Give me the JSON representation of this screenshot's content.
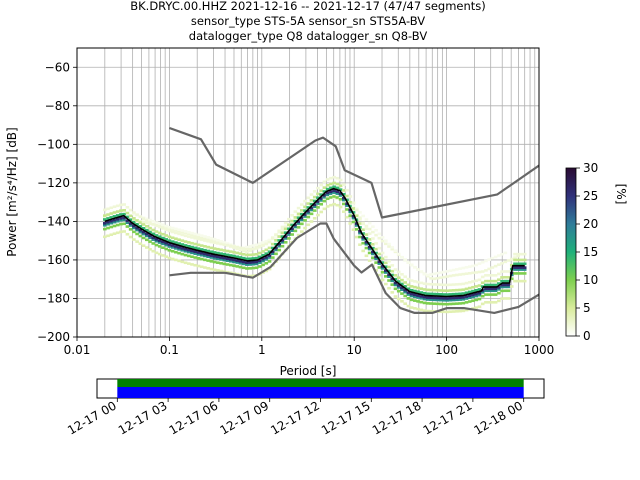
{
  "chart_data": [
    {
      "type": "heatmap",
      "title_lines": [
        "BK.DRYC.00.HHZ   2021-12-16 -- 2021-12-17  (47/47 segments)",
        "sensor_type STS-5A sensor_sn STS5A-BV",
        "datalogger_type Q8 datalogger_sn Q8-BV"
      ],
      "xlabel": "Period [s]",
      "ylabel": "Power [m²/s⁴/Hz] [dB]",
      "x_scale": "log",
      "xlim": [
        0.01,
        1000
      ],
      "ylim": [
        -200,
        -50
      ],
      "x_ticks": [
        {
          "v": 0.01,
          "label": "0.01"
        },
        {
          "v": 0.1,
          "label": "0.1"
        },
        {
          "v": 1,
          "label": "1"
        },
        {
          "v": 10,
          "label": "10"
        },
        {
          "v": 100,
          "label": "100"
        },
        {
          "v": 1000,
          "label": "1000"
        }
      ],
      "y_ticks": [
        {
          "v": -60,
          "label": "−60"
        },
        {
          "v": -80,
          "label": "−80"
        },
        {
          "v": -100,
          "label": "−100"
        },
        {
          "v": -120,
          "label": "−120"
        },
        {
          "v": -140,
          "label": "−140"
        },
        {
          "v": -160,
          "label": "−160"
        },
        {
          "v": -180,
          "label": "−180"
        },
        {
          "v": -200,
          "label": "−200"
        }
      ],
      "grid": true,
      "colorbar": {
        "label": "[%]",
        "range": [
          0,
          30
        ],
        "ticks": [
          {
            "v": 0,
            "label": "0"
          },
          {
            "v": 5,
            "label": "5"
          },
          {
            "v": 10,
            "label": "10"
          },
          {
            "v": 15,
            "label": "15"
          },
          {
            "v": 20,
            "label": "20"
          },
          {
            "v": 25,
            "label": "25"
          },
          {
            "v": 30,
            "label": "30"
          }
        ],
        "colors": [
          "#ffffff",
          "#d9ec9c",
          "#7ecf4f",
          "#1fb07a",
          "#2f7c9a",
          "#30317a",
          "#2a0b33"
        ]
      },
      "noise_models": [
        {
          "name": "NHNM",
          "points": [
            [
              0.1,
              -91.5
            ],
            [
              0.22,
              -97.4
            ],
            [
              0.32,
              -110.5
            ],
            [
              0.8,
              -120
            ],
            [
              3.8,
              -98
            ],
            [
              4.6,
              -96.5
            ],
            [
              6.3,
              -101
            ],
            [
              7.9,
              -113.5
            ],
            [
              15.4,
              -120
            ],
            [
              20,
              -138
            ],
            [
              354.8,
              -126
            ],
            [
              1000,
              -111
            ]
          ]
        },
        {
          "name": "NLNM",
          "points": [
            [
              0.1,
              -168
            ],
            [
              0.17,
              -166.7
            ],
            [
              0.4,
              -166.7
            ],
            [
              0.8,
              -169.2
            ],
            [
              1.24,
              -163.7
            ],
            [
              2.4,
              -148.6
            ],
            [
              4.3,
              -141.1
            ],
            [
              5,
              -141.1
            ],
            [
              6,
              -149
            ],
            [
              10,
              -163
            ],
            [
              12,
              -166.5
            ],
            [
              15.6,
              -162.4
            ],
            [
              21.9,
              -177.2
            ],
            [
              31.6,
              -185
            ],
            [
              45,
              -187.5
            ],
            [
              70,
              -187.5
            ],
            [
              101,
              -185
            ],
            [
              154,
              -185
            ],
            [
              328,
              -187.5
            ],
            [
              600,
              -184.4
            ],
            [
              1000,
              -178
            ]
          ]
        }
      ],
      "mode_curve": [
        [
          0.02,
          -140
        ],
        [
          0.025,
          -138.5
        ],
        [
          0.032,
          -137
        ],
        [
          0.04,
          -141
        ],
        [
          0.05,
          -144
        ],
        [
          0.07,
          -148
        ],
        [
          0.1,
          -151
        ],
        [
          0.15,
          -153.5
        ],
        [
          0.2,
          -155
        ],
        [
          0.3,
          -157
        ],
        [
          0.5,
          -159
        ],
        [
          0.7,
          -160.5
        ],
        [
          0.9,
          -160
        ],
        [
          1.2,
          -157
        ],
        [
          1.6,
          -150
        ],
        [
          2.2,
          -142
        ],
        [
          3,
          -135
        ],
        [
          4,
          -129
        ],
        [
          5,
          -124.5
        ],
        [
          6,
          -123
        ],
        [
          7,
          -124
        ],
        [
          8,
          -128
        ],
        [
          10,
          -137
        ],
        [
          12,
          -146
        ],
        [
          15,
          -153
        ],
        [
          20,
          -162
        ],
        [
          28,
          -171
        ],
        [
          40,
          -176.5
        ],
        [
          60,
          -178.5
        ],
        [
          100,
          -179
        ],
        [
          150,
          -178.5
        ],
        [
          200,
          -177
        ],
        [
          240,
          -176
        ],
        [
          250,
          -174
        ],
        [
          350,
          -174
        ],
        [
          400,
          -172
        ],
        [
          480,
          -172
        ],
        [
          520,
          -163
        ],
        [
          700,
          -163
        ]
      ],
      "density_spread": {
        "stripes": [
          [
            -8,
            4
          ],
          [
            -4,
            10
          ],
          [
            -2,
            18
          ],
          [
            -1,
            26
          ],
          [
            1,
            14
          ],
          [
            3,
            6
          ],
          [
            6,
            2
          ]
        ]
      },
      "faint_upper_curves": [
        {
          "points": [
            [
              0.02,
              -138
            ],
            [
              0.05,
              -140
            ],
            [
              0.15,
              -146
            ],
            [
              0.4,
              -152
            ],
            [
              0.7,
              -156
            ],
            [
              1.2,
              -150
            ],
            [
              2,
              -141
            ],
            [
              3,
              -134
            ],
            [
              5,
              -127
            ],
            [
              8,
              -129
            ],
            [
              12,
              -140
            ],
            [
              20,
              -150
            ],
            [
              40,
              -162
            ],
            [
              70,
              -170
            ],
            [
              120,
              -168
            ],
            [
              250,
              -166
            ],
            [
              600,
              -158
            ]
          ],
          "level": 2
        },
        {
          "points": [
            [
              0.04,
              -136
            ],
            [
              0.1,
              -143
            ],
            [
              0.3,
              -149
            ],
            [
              0.6,
              -154
            ],
            [
              0.9,
              -152
            ],
            [
              1.5,
              -148
            ],
            [
              2.5,
              -142
            ],
            [
              4,
              -131
            ],
            [
              6,
              -126
            ],
            [
              10,
              -132
            ],
            [
              20,
              -148
            ],
            [
              35,
              -160
            ],
            [
              60,
              -168
            ],
            [
              100,
              -166
            ],
            [
              200,
              -163
            ],
            [
              450,
              -156
            ]
          ],
          "level": 1
        }
      ],
      "highlight_y": {
        "min": -190,
        "max": -130
      }
    },
    {
      "type": "timeline",
      "x_ticks": [
        "12-17 00",
        "12-17 03",
        "12-17 06",
        "12-17 09",
        "12-17 12",
        "12-17 15",
        "12-17 18",
        "12-17 21",
        "12-18 00"
      ],
      "x_hours": [
        0,
        3,
        6,
        9,
        12,
        15,
        18,
        21,
        24
      ],
      "xlim_hours": [
        -1.2,
        25.2
      ],
      "data_range_hours": [
        0,
        24
      ],
      "series": [
        {
          "name": "gaps-row",
          "color": "#008000"
        },
        {
          "name": "data-row",
          "color": "#0000ff"
        }
      ]
    }
  ]
}
